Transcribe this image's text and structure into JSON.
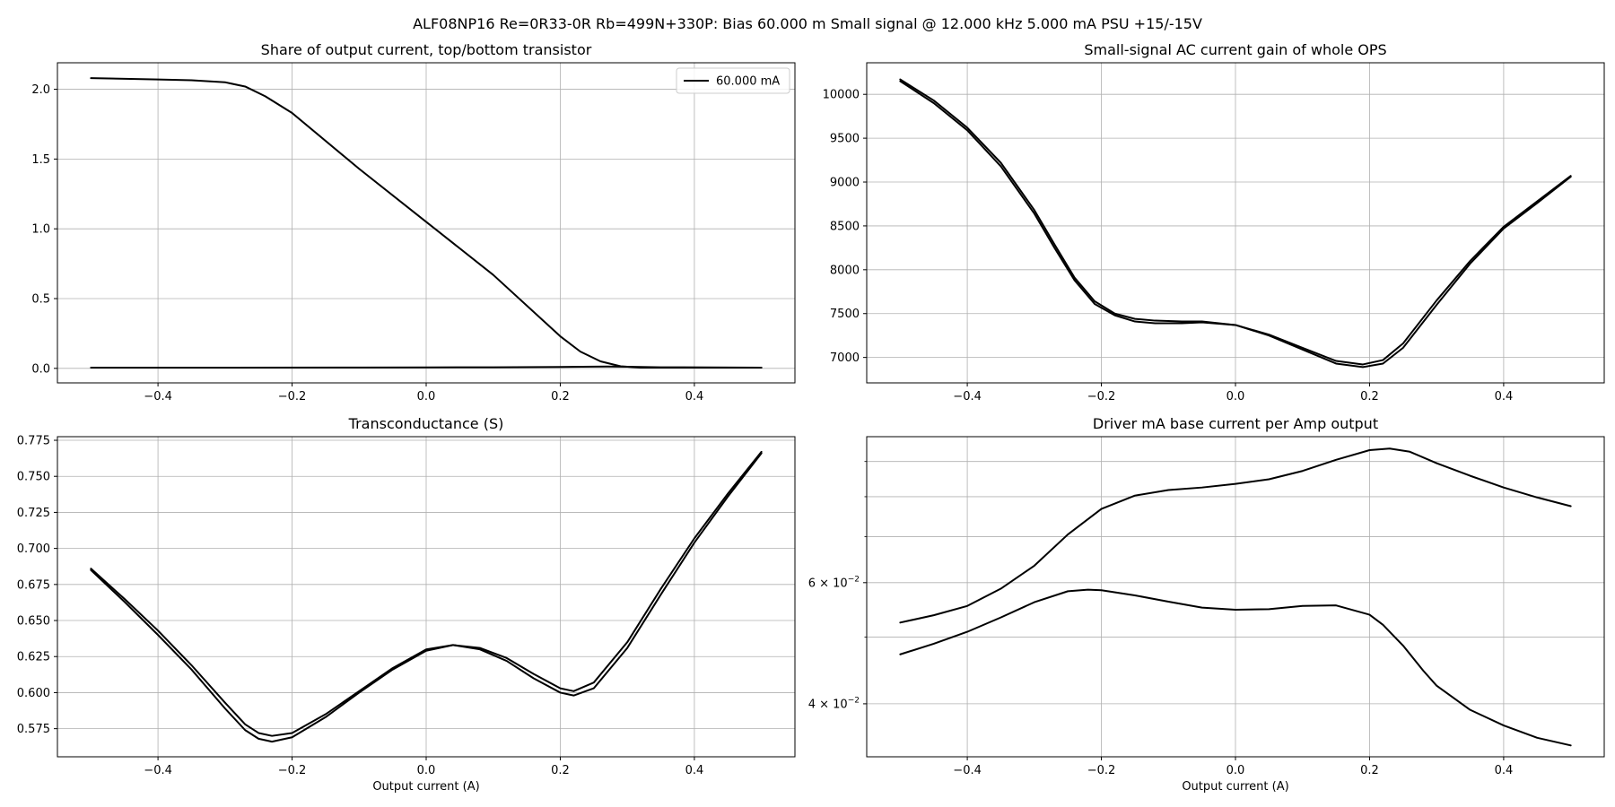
{
  "figure": {
    "suptitle": "ALF08NP16 Re=0R33-0R Rb=499N+330P: Bias 60.000 m Small signal @ 12.000 kHz 5.000 mA PSU +15/-15V"
  },
  "colors": {
    "line": "#000000",
    "grid": "#b0b0b0",
    "axes": "#000000"
  },
  "chart_data": [
    {
      "type": "line",
      "title": "Share of output current, top/bottom transistor",
      "xlabel": "",
      "ylabel": "",
      "xlim": [
        -0.55,
        0.55
      ],
      "ylim": [
        -0.104,
        2.19
      ],
      "grid": true,
      "legend": {
        "placement": "top-right",
        "entries": [
          "60.000 mA"
        ]
      },
      "xticks": [
        -0.4,
        -0.2,
        0.0,
        0.2,
        0.4
      ],
      "xticklabels": [
        "−0.4",
        "−0.2",
        "0.0",
        "0.2",
        "0.4"
      ],
      "yticks": [
        0.0,
        0.5,
        1.0,
        1.5,
        2.0
      ],
      "yticklabels": [
        "0.0",
        "0.5",
        "1.0",
        "1.5",
        "2.0"
      ],
      "series": [
        {
          "name": "60.000 mA",
          "x": [
            -0.5,
            -0.4,
            -0.35,
            -0.3,
            -0.27,
            -0.24,
            -0.2,
            -0.1,
            0.0,
            0.1,
            0.2,
            0.23,
            0.26,
            0.29,
            0.32,
            0.4,
            0.5
          ],
          "y": [
            2.08,
            2.07,
            2.065,
            2.05,
            2.02,
            1.95,
            1.83,
            1.43,
            1.05,
            0.67,
            0.23,
            0.12,
            0.05,
            0.015,
            0.005,
            0.005,
            0.005
          ]
        },
        {
          "name": "",
          "x": [
            -0.5,
            -0.3,
            -0.1,
            0.0,
            0.1,
            0.2,
            0.27,
            0.3,
            0.35,
            0.5
          ],
          "y": [
            0.005,
            0.005,
            0.006,
            0.007,
            0.008,
            0.01,
            0.013,
            0.012,
            0.008,
            0.005
          ]
        }
      ]
    },
    {
      "type": "line",
      "title": "Small-signal AC current gain of whole OPS",
      "xlabel": "",
      "ylabel": "",
      "xlim": [
        -0.55,
        0.55
      ],
      "ylim": [
        6710,
        10360
      ],
      "grid": true,
      "xticks": [
        -0.4,
        -0.2,
        0.0,
        0.2,
        0.4
      ],
      "xticklabels": [
        "−0.4",
        "−0.2",
        "0.0",
        "0.2",
        "0.4"
      ],
      "yticks": [
        7000,
        7500,
        8000,
        8500,
        9000,
        9500,
        10000
      ],
      "yticklabels": [
        "7000",
        "7500",
        "8000",
        "8500",
        "9000",
        "9500",
        "10000"
      ],
      "series": [
        {
          "name": "",
          "x": [
            -0.5,
            -0.45,
            -0.4,
            -0.35,
            -0.3,
            -0.27,
            -0.24,
            -0.21,
            -0.18,
            -0.15,
            -0.12,
            -0.08,
            -0.05,
            0.0,
            0.05,
            0.1,
            0.15,
            0.19,
            0.22,
            0.25,
            0.3,
            0.35,
            0.4,
            0.45,
            0.5
          ],
          "y": [
            10170,
            9930,
            9620,
            9220,
            8680,
            8290,
            7910,
            7640,
            7500,
            7440,
            7420,
            7410,
            7410,
            7370,
            7260,
            7110,
            6960,
            6920,
            6970,
            7160,
            7650,
            8100,
            8490,
            8780,
            9070
          ]
        },
        {
          "name": "",
          "x": [
            -0.5,
            -0.45,
            -0.4,
            -0.35,
            -0.3,
            -0.27,
            -0.24,
            -0.21,
            -0.18,
            -0.15,
            -0.12,
            -0.08,
            -0.05,
            0.0,
            0.05,
            0.1,
            0.15,
            0.19,
            0.22,
            0.25,
            0.3,
            0.35,
            0.4,
            0.45,
            0.5
          ],
          "y": [
            10150,
            9900,
            9590,
            9180,
            8640,
            8250,
            7880,
            7610,
            7480,
            7410,
            7390,
            7390,
            7400,
            7370,
            7250,
            7090,
            6930,
            6890,
            6930,
            7110,
            7600,
            8070,
            8470,
            8760,
            9060
          ]
        }
      ]
    },
    {
      "type": "line",
      "title": "Transconductance (S)",
      "xlabel": "Output current (A)",
      "ylabel": "",
      "xlim": [
        -0.55,
        0.55
      ],
      "ylim": [
        0.5555,
        0.7775
      ],
      "grid": true,
      "xticks": [
        -0.4,
        -0.2,
        0.0,
        0.2,
        0.4
      ],
      "xticklabels": [
        "−0.4",
        "−0.2",
        "0.0",
        "0.2",
        "0.4"
      ],
      "yticks": [
        0.575,
        0.6,
        0.625,
        0.65,
        0.675,
        0.7,
        0.725,
        0.75,
        0.775
      ],
      "yticklabels": [
        "0.575",
        "0.600",
        "0.625",
        "0.650",
        "0.675",
        "0.700",
        "0.725",
        "0.750",
        "0.775"
      ],
      "series": [
        {
          "name": "",
          "x": [
            -0.5,
            -0.45,
            -0.4,
            -0.35,
            -0.3,
            -0.27,
            -0.25,
            -0.23,
            -0.2,
            -0.15,
            -0.1,
            -0.05,
            0.0,
            0.04,
            0.08,
            0.12,
            0.16,
            0.2,
            0.22,
            0.25,
            0.3,
            0.35,
            0.4,
            0.45,
            0.5
          ],
          "y": [
            0.686,
            0.665,
            0.643,
            0.619,
            0.593,
            0.578,
            0.572,
            0.57,
            0.572,
            0.585,
            0.601,
            0.617,
            0.63,
            0.633,
            0.631,
            0.624,
            0.613,
            0.603,
            0.601,
            0.607,
            0.635,
            0.672,
            0.707,
            0.738,
            0.767
          ]
        },
        {
          "name": "",
          "x": [
            -0.5,
            -0.45,
            -0.4,
            -0.35,
            -0.3,
            -0.27,
            -0.25,
            -0.23,
            -0.2,
            -0.15,
            -0.1,
            -0.05,
            0.0,
            0.04,
            0.08,
            0.12,
            0.16,
            0.2,
            0.22,
            0.25,
            0.3,
            0.35,
            0.4,
            0.45,
            0.5
          ],
          "y": [
            0.685,
            0.663,
            0.64,
            0.616,
            0.589,
            0.574,
            0.568,
            0.566,
            0.569,
            0.583,
            0.6,
            0.616,
            0.629,
            0.633,
            0.63,
            0.622,
            0.61,
            0.6,
            0.598,
            0.603,
            0.631,
            0.668,
            0.704,
            0.736,
            0.766
          ]
        }
      ]
    },
    {
      "type": "line",
      "title": "Driver mA base current per Amp output",
      "xlabel": "Output current (A)",
      "ylabel": "",
      "xlim": [
        -0.55,
        0.55
      ],
      "ylim": [
        0.0335,
        0.0978
      ],
      "yscale": "log",
      "grid": true,
      "xticks": [
        -0.4,
        -0.2,
        0.0,
        0.2,
        0.4
      ],
      "xticklabels": [
        "−0.4",
        "−0.2",
        "0.0",
        "0.2",
        "0.4"
      ],
      "yticks": [
        0.04,
        0.06
      ],
      "yticklabels": [
        {
          "base": "4 × 10",
          "exp": "−2"
        },
        {
          "base": "6 × 10",
          "exp": "−2"
        }
      ],
      "yminorticks": [
        0.05,
        0.07,
        0.08,
        0.09
      ],
      "series": [
        {
          "name": "",
          "x": [
            -0.5,
            -0.45,
            -0.4,
            -0.35,
            -0.3,
            -0.25,
            -0.2,
            -0.15,
            -0.1,
            -0.05,
            0.0,
            0.05,
            0.1,
            0.15,
            0.2,
            0.23,
            0.26,
            0.3,
            0.35,
            0.4,
            0.45,
            0.5
          ],
          "y": [
            0.0525,
            0.0538,
            0.0555,
            0.0588,
            0.0635,
            0.0705,
            0.0768,
            0.0803,
            0.0818,
            0.0825,
            0.0835,
            0.0848,
            0.0872,
            0.0905,
            0.0935,
            0.094,
            0.093,
            0.0895,
            0.0858,
            0.0825,
            0.0798,
            0.0775
          ]
        },
        {
          "name": "",
          "x": [
            -0.5,
            -0.45,
            -0.4,
            -0.35,
            -0.3,
            -0.25,
            -0.22,
            -0.2,
            -0.15,
            -0.1,
            -0.05,
            0.0,
            0.05,
            0.1,
            0.15,
            0.2,
            0.22,
            0.25,
            0.28,
            0.3,
            0.35,
            0.4,
            0.45,
            0.5
          ],
          "y": [
            0.0472,
            0.0489,
            0.0509,
            0.0534,
            0.0562,
            0.0583,
            0.0586,
            0.0585,
            0.0575,
            0.0563,
            0.0552,
            0.0548,
            0.0549,
            0.0555,
            0.0556,
            0.0539,
            0.0521,
            0.0486,
            0.0447,
            0.0425,
            0.0392,
            0.0372,
            0.0357,
            0.0348
          ]
        }
      ]
    }
  ]
}
